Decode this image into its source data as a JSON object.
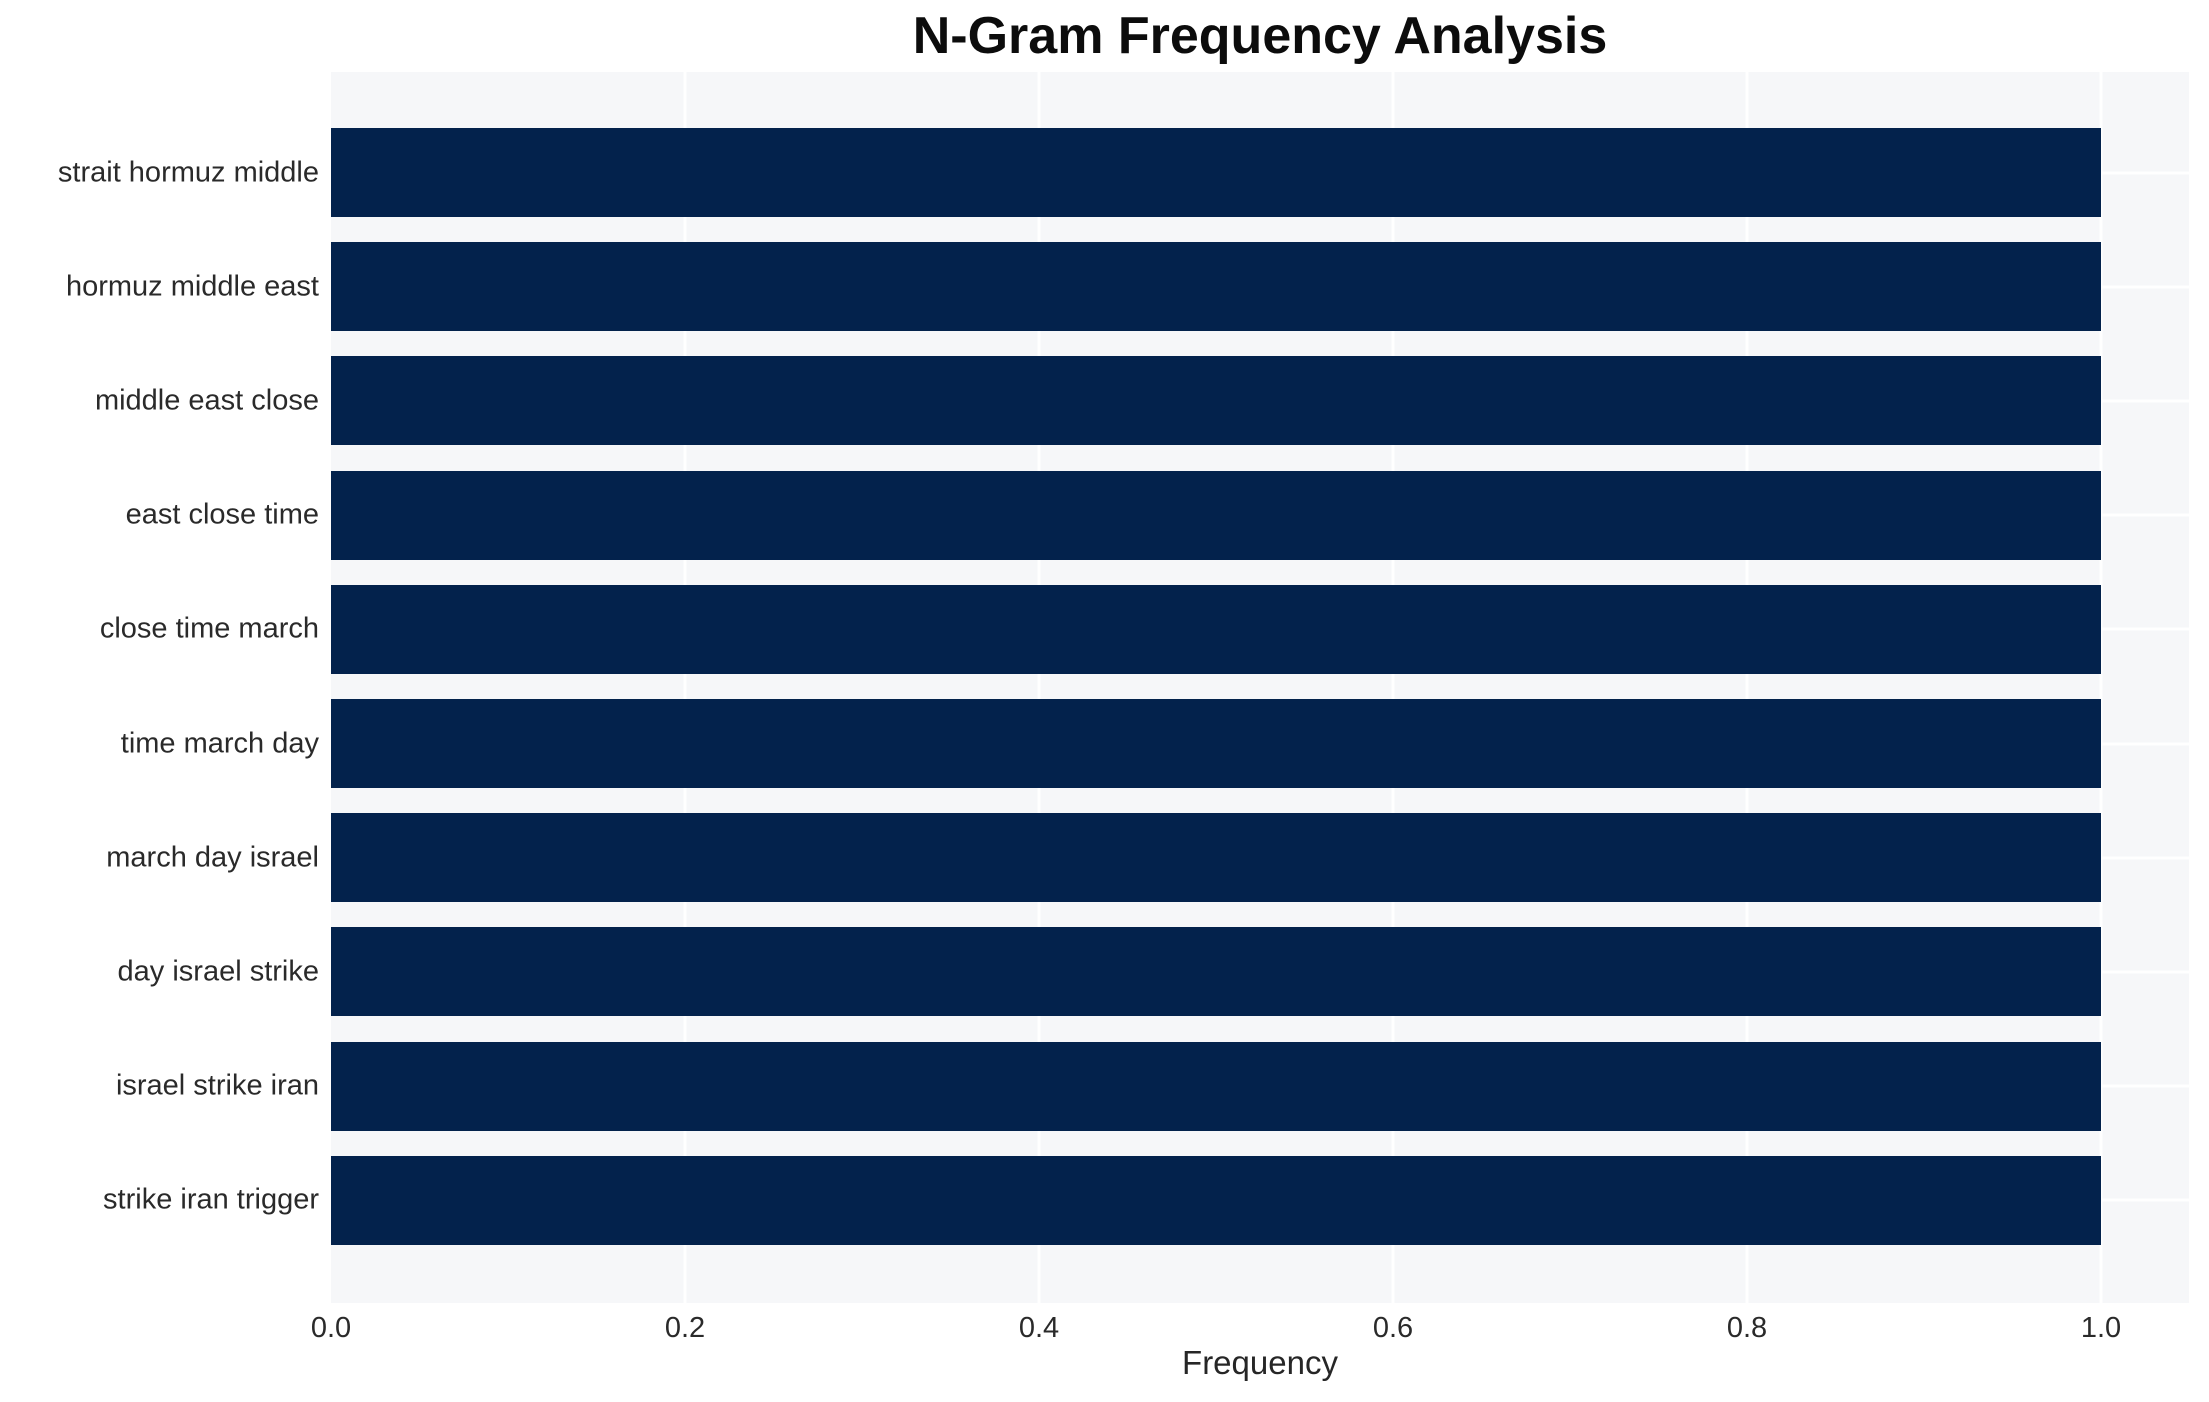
{
  "chart_data": {
    "type": "bar",
    "orientation": "horizontal",
    "title": "N-Gram Frequency Analysis",
    "xlabel": "Frequency",
    "ylabel": "",
    "categories": [
      "strait hormuz middle",
      "hormuz middle east",
      "middle east close",
      "east close time",
      "close time march",
      "time march day",
      "march day israel",
      "day israel strike",
      "israel strike iran",
      "strike iran trigger"
    ],
    "values": [
      1.0,
      1.0,
      1.0,
      1.0,
      1.0,
      1.0,
      1.0,
      1.0,
      1.0,
      1.0
    ],
    "xticks": [
      "0.0",
      "0.2",
      "0.4",
      "0.6",
      "0.8",
      "1.0"
    ],
    "xlim": [
      0.0,
      1.05
    ],
    "grid": "on",
    "legend": "none",
    "colors": {
      "bar": "#03224c",
      "panel_bg": "#f6f7f9",
      "figure_bg": "#ffffff",
      "gridline": "#ffffff",
      "title_text": "#0c0c0c",
      "label_text": "#2a2a2a"
    }
  }
}
